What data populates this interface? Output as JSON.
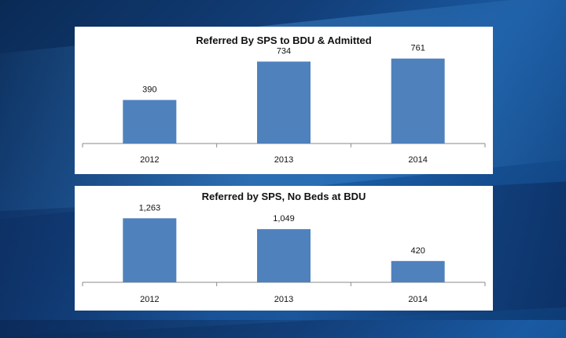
{
  "chart_data": [
    {
      "type": "bar",
      "title": "Referred By SPS to BDU & Admitted",
      "categories": [
        "2012",
        "2013",
        "2014"
      ],
      "values": [
        390,
        734,
        761
      ],
      "value_labels": [
        "390",
        "734",
        "761"
      ],
      "xlabel": "",
      "ylabel": "",
      "ylim": [
        0,
        850
      ],
      "grid": false,
      "bar_color": "#4f81bd"
    },
    {
      "type": "bar",
      "title": "Referred by SPS, No Beds at BDU",
      "categories": [
        "2012",
        "2013",
        "2014"
      ],
      "values": [
        1263,
        1049,
        420
      ],
      "value_labels": [
        "1,263",
        "1,049",
        "420"
      ],
      "xlabel": "",
      "ylabel": "",
      "ylim": [
        0,
        1500
      ],
      "grid": false,
      "bar_color": "#4f81bd"
    }
  ]
}
